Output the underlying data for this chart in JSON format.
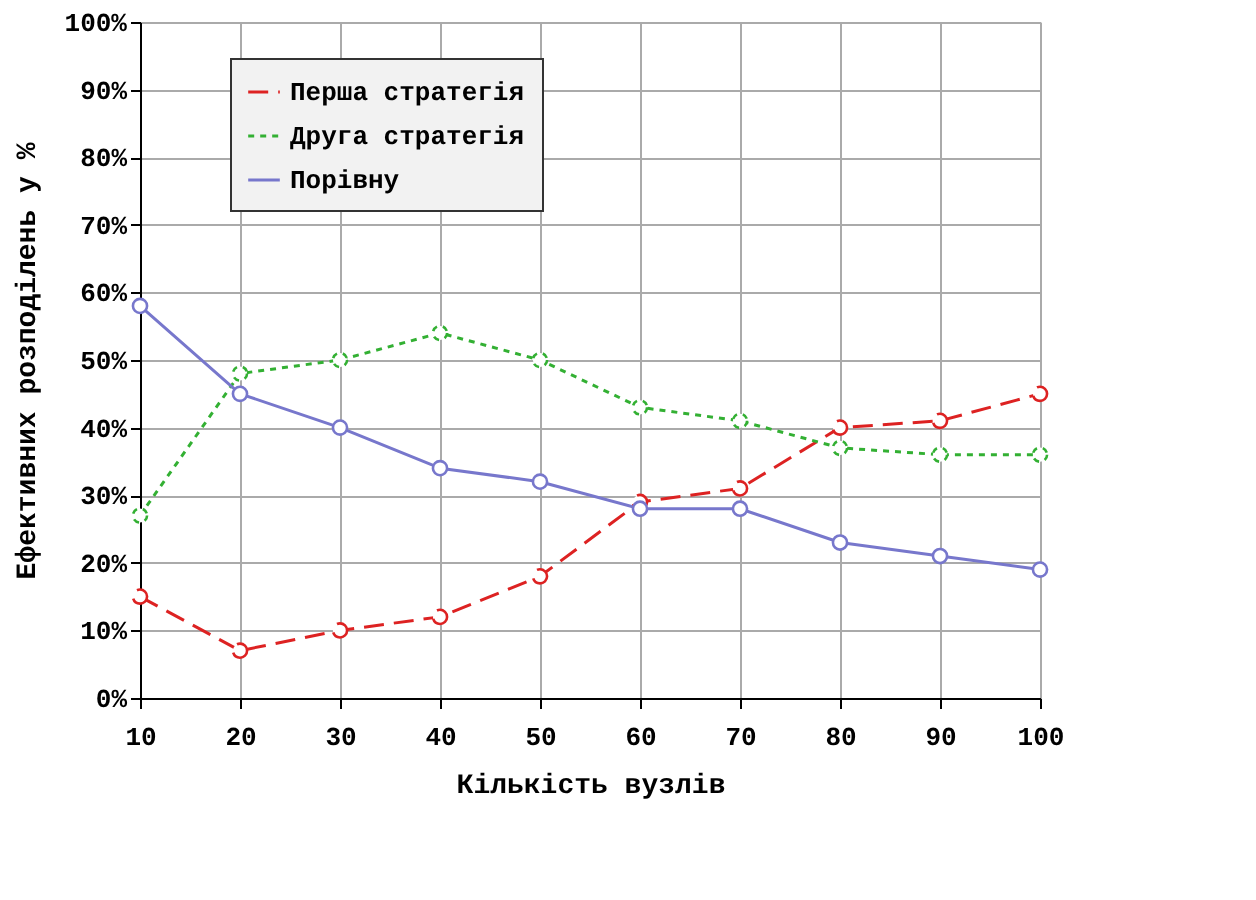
{
  "chart_data": {
    "type": "line",
    "xlabel": "Кількість вузлів",
    "ylabel": "Ефективних розподілень у %",
    "x": [
      10,
      20,
      30,
      40,
      50,
      60,
      70,
      80,
      90,
      100
    ],
    "series": [
      {
        "name": "Перша стратегія",
        "color": "#dd2222",
        "line_style": "dashed",
        "values": [
          15,
          7,
          10,
          12,
          18,
          29,
          31,
          40,
          41,
          45
        ]
      },
      {
        "name": "Друга стратегія",
        "color": "#33b033",
        "line_style": "dotted",
        "values": [
          27,
          48,
          50,
          54,
          50,
          43,
          41,
          37,
          36,
          36
        ]
      },
      {
        "name": "Порівну",
        "color": "#7777cc",
        "line_style": "solid",
        "values": [
          58,
          45,
          40,
          34,
          32,
          28,
          28,
          23,
          21,
          19
        ]
      }
    ],
    "xlim": [
      10,
      100
    ],
    "xticks": [
      10,
      20,
      30,
      40,
      50,
      60,
      70,
      80,
      90,
      100
    ],
    "ylim": [
      0,
      100
    ],
    "yticks": [
      {
        "value": 0,
        "label": "0%"
      },
      {
        "value": 10,
        "label": "10%"
      },
      {
        "value": 20,
        "label": "20%"
      },
      {
        "value": 30,
        "label": "30%"
      },
      {
        "value": 40,
        "label": "40%"
      },
      {
        "value": 50,
        "label": "50%"
      },
      {
        "value": 60,
        "label": "60%"
      },
      {
        "value": 70,
        "label": "70%"
      },
      {
        "value": 80,
        "label": "80%"
      },
      {
        "value": 90,
        "label": "90%"
      },
      {
        "value": 100,
        "label": "100%"
      }
    ],
    "grid": true,
    "legend": "top",
    "marker": "circle"
  }
}
